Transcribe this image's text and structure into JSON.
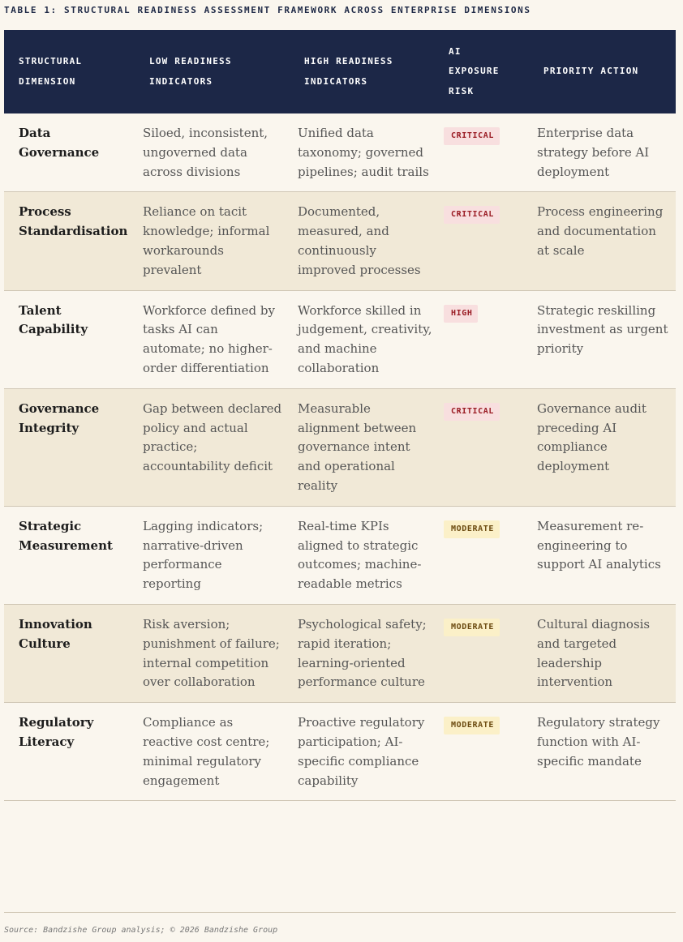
{
  "caption": "TABLE 1: STRUCTURAL READINESS ASSESSMENT FRAMEWORK ACROSS ENTERPRISE DIMENSIONS",
  "columns": [
    {
      "line1": "STRUCTURAL",
      "line2": "DIMENSION",
      "line3": ""
    },
    {
      "line1": "LOW READINESS",
      "line2": "INDICATORS",
      "line3": ""
    },
    {
      "line1": "HIGH READINESS",
      "line2": "INDICATORS",
      "line3": ""
    },
    {
      "line1": "AI",
      "line2": "EXPOSURE",
      "line3": "RISK"
    },
    {
      "line1": "PRIORITY ACTION",
      "line2": "",
      "line3": ""
    }
  ],
  "rows": [
    {
      "dimension": "Data Governance",
      "low": "Siloed, inconsistent, ungoverned data across divisions",
      "high": "Unified data taxonomy; governed pipelines; audit trails",
      "risk": "CRITICAL",
      "action": "Enterprise data strategy before AI deployment"
    },
    {
      "dimension": "Process Standardisation",
      "low": "Reliance on tacit knowledge; informal workarounds prevalent",
      "high": "Documented, measured, and continuously improved processes",
      "risk": "CRITICAL",
      "action": "Process engineering and documentation at scale"
    },
    {
      "dimension": "Talent Capability",
      "low": "Workforce defined by tasks AI can automate; no higher-order differentiation",
      "high": "Workforce skilled in judgement, creativity, and machine collaboration",
      "risk": "HIGH",
      "action": "Strategic reskilling investment as urgent priority"
    },
    {
      "dimension": "Governance Integrity",
      "low": "Gap between declared policy and actual practice; accountability deficit",
      "high": "Measurable alignment between governance intent and operational reality",
      "risk": "CRITICAL",
      "action": "Governance audit preceding AI compliance deployment"
    },
    {
      "dimension": "Strategic Measurement",
      "low": "Lagging indicators; narrative-driven performance reporting",
      "high": "Real-time KPIs aligned to strategic outcomes; machine-readable metrics",
      "risk": "MODERATE",
      "action": "Measurement re-engineering to support AI analytics"
    },
    {
      "dimension": "Innovation Culture",
      "low": "Risk aversion; punishment of failure; internal competition over collaboration",
      "high": "Psychological safety; rapid iteration; learning-oriented performance culture",
      "risk": "MODERATE",
      "action": "Cultural diagnosis and targeted leadership intervention"
    },
    {
      "dimension": "Regulatory Literacy",
      "low": "Compliance as reactive cost centre; minimal regulatory engagement",
      "high": "Proactive regulatory participation; AI-specific compliance capability",
      "risk": "MODERATE",
      "action": "Regulatory strategy function with AI-specific mandate"
    }
  ],
  "risk_colors": {
    "CRITICAL": {
      "bg": "#f8dfdf",
      "fg": "#9a1c24"
    },
    "HIGH": {
      "bg": "#f8dfdf",
      "fg": "#9a1c24"
    },
    "MODERATE": {
      "bg": "#fbf0c8",
      "fg": "#6b4a10"
    }
  },
  "header_color": "#1c2747",
  "source": "Source: Bandzishe Group analysis; © 2026 Bandzishe Group"
}
